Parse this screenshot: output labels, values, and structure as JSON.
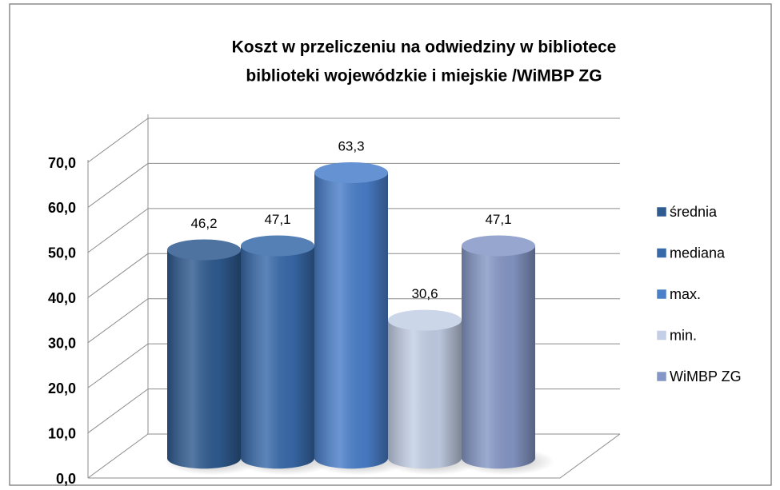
{
  "chart_data": {
    "type": "bar",
    "title": [
      "Koszt w przeliczeniu na odwiedziny w bibliotece",
      "biblioteki wojewódzkie i miejskie /WiMBP ZG"
    ],
    "series": [
      {
        "name": "średnia",
        "color": "#2f5b90",
        "values": [
          46.2
        ],
        "value_labels": [
          "46,2"
        ]
      },
      {
        "name": "mediana",
        "color": "#386aaa",
        "values": [
          47.1
        ],
        "value_labels": [
          "47,1"
        ]
      },
      {
        "name": "max.",
        "color": "#4a7fca",
        "values": [
          63.3
        ],
        "value_labels": [
          "63,3"
        ]
      },
      {
        "name": "min.",
        "color": "#c3cfe6",
        "values": [
          30.6
        ],
        "value_labels": [
          "30,6"
        ]
      },
      {
        "name": "WiMBP ZG",
        "color": "#8597c6",
        "values": [
          47.1
        ],
        "value_labels": [
          "47,1"
        ]
      }
    ],
    "ylim": [
      0,
      70
    ],
    "yticks": [
      {
        "value": 0,
        "label": "0,0"
      },
      {
        "value": 10,
        "label": "10,0"
      },
      {
        "value": 20,
        "label": "20,0"
      },
      {
        "value": 30,
        "label": "30,0"
      },
      {
        "value": 40,
        "label": "40,0"
      },
      {
        "value": 50,
        "label": "50,0"
      },
      {
        "value": 60,
        "label": "60,0"
      },
      {
        "value": 70,
        "label": "70,0"
      }
    ],
    "grid": true,
    "legend": "right"
  }
}
